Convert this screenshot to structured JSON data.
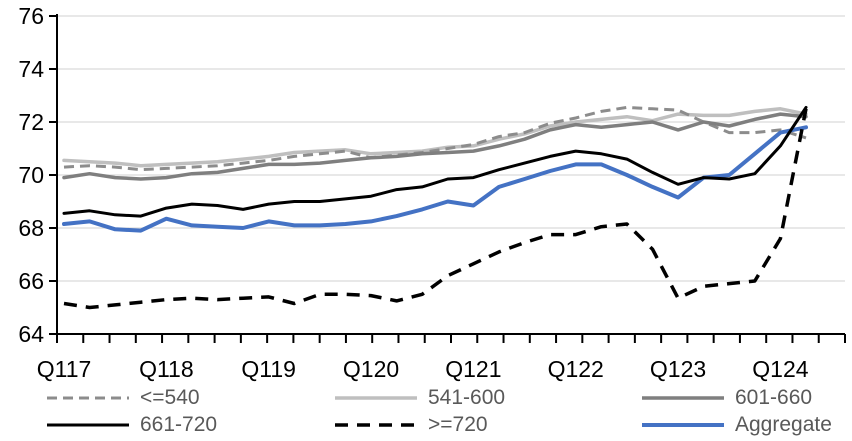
{
  "chart_data": {
    "type": "line",
    "title": "",
    "xlabel": "",
    "ylabel": "",
    "ylim": [
      64,
      76
    ],
    "ytick_step": 2,
    "grid": true,
    "legend_position": "bottom",
    "y_tick_labels": [
      "64",
      "66",
      "68",
      "70",
      "72",
      "74",
      "76"
    ],
    "x_year_labels": [
      "Q117",
      "Q118",
      "Q119",
      "Q120",
      "Q121",
      "Q122",
      "Q123",
      "Q124"
    ],
    "x_label_every": 4,
    "categories": [
      "Q117",
      "Q217",
      "Q317",
      "Q417",
      "Q118",
      "Q218",
      "Q318",
      "Q418",
      "Q119",
      "Q219",
      "Q319",
      "Q419",
      "Q120",
      "Q220",
      "Q320",
      "Q420",
      "Q121",
      "Q221",
      "Q321",
      "Q421",
      "Q122",
      "Q222",
      "Q322",
      "Q422",
      "Q123",
      "Q223",
      "Q323",
      "Q423",
      "Q124",
      "Q224"
    ],
    "series": [
      {
        "key": "le540",
        "name": "<=540",
        "color": "#8c8c8c",
        "dash": "10 6",
        "width": 3,
        "z": 2,
        "values": [
          70.3,
          70.35,
          70.3,
          70.2,
          70.25,
          70.3,
          70.35,
          70.45,
          70.55,
          70.7,
          70.8,
          70.9,
          70.65,
          70.75,
          70.85,
          71.0,
          71.15,
          71.45,
          71.6,
          71.95,
          72.15,
          72.4,
          72.55,
          72.5,
          72.45,
          72.0,
          71.6,
          71.6,
          71.7,
          71.4
        ]
      },
      {
        "key": "s541-600",
        "name": "541-600",
        "color": "#bfbfbf",
        "dash": null,
        "width": 3.5,
        "z": 1,
        "values": [
          70.55,
          70.5,
          70.45,
          70.35,
          70.4,
          70.45,
          70.5,
          70.6,
          70.7,
          70.85,
          70.9,
          70.95,
          70.8,
          70.85,
          70.9,
          71.05,
          71.1,
          71.35,
          71.55,
          71.85,
          72.0,
          72.1,
          72.2,
          72.05,
          72.3,
          72.25,
          72.25,
          72.4,
          72.5,
          72.3
        ]
      },
      {
        "key": "s601-660",
        "name": "601-660",
        "color": "#7f7f7f",
        "dash": null,
        "width": 3.5,
        "z": 3,
        "values": [
          69.9,
          70.05,
          69.9,
          69.85,
          69.9,
          70.05,
          70.1,
          70.25,
          70.4,
          70.4,
          70.45,
          70.55,
          70.65,
          70.7,
          70.8,
          70.85,
          70.9,
          71.1,
          71.35,
          71.7,
          71.9,
          71.8,
          71.9,
          72.0,
          71.7,
          72.0,
          71.85,
          72.1,
          72.3,
          72.2
        ]
      },
      {
        "key": "s661-720",
        "name": "661-720",
        "color": "#000000",
        "dash": null,
        "width": 3,
        "z": 5,
        "values": [
          68.55,
          68.65,
          68.5,
          68.45,
          68.75,
          68.9,
          68.85,
          68.7,
          68.9,
          69.0,
          69.0,
          69.1,
          69.2,
          69.45,
          69.55,
          69.85,
          69.9,
          70.2,
          70.45,
          70.7,
          70.9,
          70.8,
          70.6,
          70.1,
          69.65,
          69.9,
          69.85,
          70.05,
          71.1,
          72.55
        ]
      },
      {
        "key": "ge720",
        "name": ">=720",
        "color": "#000000",
        "dash": "13 9",
        "width": 3.5,
        "z": 6,
        "values": [
          65.15,
          65.0,
          65.1,
          65.2,
          65.3,
          65.35,
          65.3,
          65.35,
          65.4,
          65.15,
          65.5,
          65.5,
          65.45,
          65.25,
          65.5,
          66.2,
          66.65,
          67.1,
          67.45,
          67.75,
          67.75,
          68.05,
          68.15,
          67.2,
          65.35,
          65.8,
          65.9,
          66.0,
          67.6,
          72.5
        ]
      },
      {
        "key": "aggregate",
        "name": "Aggregate",
        "color": "#4472c4",
        "dash": null,
        "width": 4,
        "z": 4,
        "values": [
          68.15,
          68.25,
          67.95,
          67.9,
          68.35,
          68.1,
          68.05,
          68.0,
          68.25,
          68.1,
          68.1,
          68.15,
          68.25,
          68.45,
          68.7,
          69.0,
          68.85,
          69.55,
          69.85,
          70.15,
          70.4,
          70.4,
          70.0,
          69.55,
          69.15,
          69.9,
          70.0,
          70.8,
          71.6,
          71.8
        ]
      }
    ]
  },
  "style": {
    "gridline_color": "#d9d9d9",
    "axis_color": "#000000",
    "axis_label_color": "#000000",
    "legend_text_color": "#595959"
  }
}
